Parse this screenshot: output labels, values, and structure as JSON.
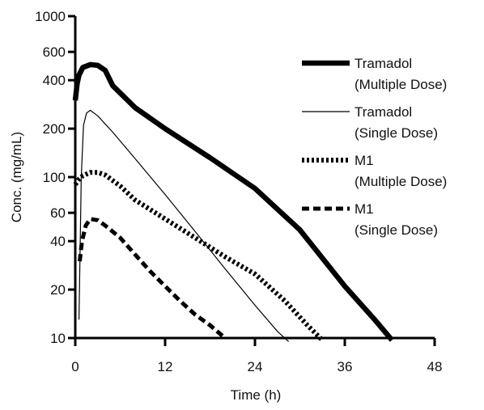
{
  "chart_data": {
    "type": "line",
    "xlabel": "Time (h)",
    "ylabel": "Conc. (mg/mL)",
    "x_scale": "linear",
    "y_scale": "log",
    "xlim": [
      0,
      48
    ],
    "ylim": [
      10,
      1000
    ],
    "x_ticks": [
      0,
      12,
      24,
      36,
      48
    ],
    "y_ticks": [
      10,
      20,
      40,
      60,
      100,
      200,
      400,
      600,
      1000
    ],
    "grid": false,
    "legend_position": "right",
    "series": [
      {
        "name": "Tramadol (Multiple Dose)",
        "legend_lines": [
          "Tramadol",
          "(Multiple Dose)"
        ],
        "style": "thick-solid",
        "color": "#000000",
        "points": [
          [
            0,
            300
          ],
          [
            0.25,
            380
          ],
          [
            0.5,
            430
          ],
          [
            1,
            480
          ],
          [
            2,
            500
          ],
          [
            3,
            495
          ],
          [
            4,
            460
          ],
          [
            5,
            370
          ],
          [
            8,
            270
          ],
          [
            12,
            200
          ],
          [
            18,
            132
          ],
          [
            24,
            85
          ],
          [
            30,
            47
          ],
          [
            36,
            21
          ],
          [
            40,
            13
          ],
          [
            42.3,
            9.7
          ]
        ]
      },
      {
        "name": "Tramadol (Single Dose)",
        "legend_lines": [
          "Tramadol",
          "(Single Dose)"
        ],
        "style": "thin-solid",
        "color": "#000000",
        "points": [
          [
            0.5,
            13
          ],
          [
            0.8,
            100
          ],
          [
            1.1,
            210
          ],
          [
            1.5,
            250
          ],
          [
            2,
            260
          ],
          [
            3,
            240
          ],
          [
            5,
            190
          ],
          [
            8,
            130
          ],
          [
            12,
            78
          ],
          [
            16,
            46
          ],
          [
            20,
            27
          ],
          [
            24,
            16
          ],
          [
            27,
            11
          ],
          [
            28.5,
            9.5
          ]
        ]
      },
      {
        "name": "M1 (Multiple Dose)",
        "legend_lines": [
          "M1",
          "(Multiple Dose)"
        ],
        "style": "dotted",
        "color": "#000000",
        "points": [
          [
            0,
            90
          ],
          [
            0.5,
            97
          ],
          [
            1,
            102
          ],
          [
            2,
            107
          ],
          [
            3,
            107
          ],
          [
            4,
            103
          ],
          [
            6,
            88
          ],
          [
            8,
            72
          ],
          [
            12,
            55
          ],
          [
            16,
            42
          ],
          [
            20,
            32
          ],
          [
            24,
            25
          ],
          [
            28,
            17
          ],
          [
            31,
            12
          ],
          [
            33,
            9.7
          ]
        ]
      },
      {
        "name": "M1 (Single Dose)",
        "legend_lines": [
          "M1",
          "(Single Dose)"
        ],
        "style": "dashed",
        "color": "#000000",
        "points": [
          [
            0.6,
            30
          ],
          [
            0.9,
            40
          ],
          [
            1.4,
            50
          ],
          [
            2,
            55
          ],
          [
            3,
            54
          ],
          [
            4,
            50
          ],
          [
            6,
            42
          ],
          [
            8,
            33
          ],
          [
            10,
            26
          ],
          [
            12,
            21
          ],
          [
            14,
            17
          ],
          [
            16,
            14
          ],
          [
            18,
            12
          ],
          [
            20,
            10
          ]
        ]
      }
    ]
  }
}
